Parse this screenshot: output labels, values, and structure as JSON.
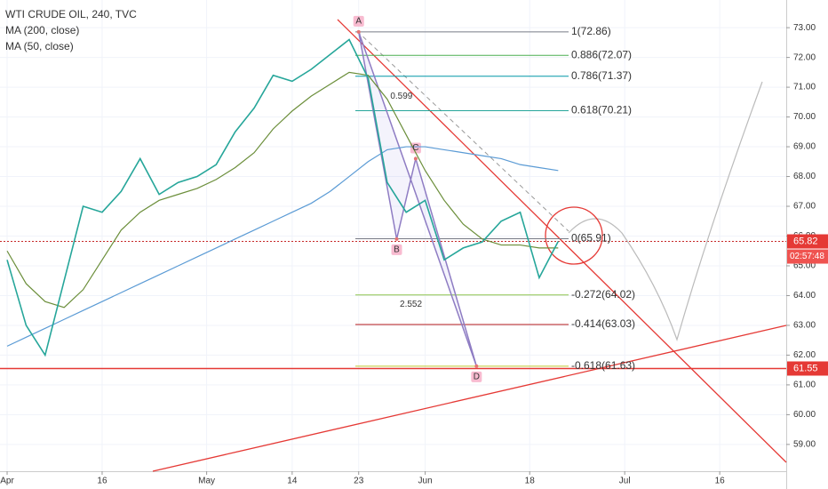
{
  "chart_data": {
    "type": "line",
    "title": "WTI CRUDE OIL, 240, TVC",
    "x": [
      0,
      2,
      4,
      6,
      8,
      10,
      12,
      14,
      16,
      18,
      20,
      22,
      24,
      26,
      28,
      30,
      32,
      34,
      36,
      38,
      40,
      42,
      44,
      46,
      48,
      50,
      52,
      54,
      56,
      58
    ],
    "series": [
      {
        "name": "MA (200, close)",
        "color": "#5b9bd5",
        "values": [
          62.3,
          62.6,
          62.9,
          63.2,
          63.5,
          63.8,
          64.1,
          64.4,
          64.7,
          65.0,
          65.3,
          65.6,
          65.9,
          66.2,
          66.5,
          66.8,
          67.1,
          67.5,
          68.0,
          68.5,
          68.9,
          69.0,
          69.0,
          68.9,
          68.8,
          68.7,
          68.6,
          68.4,
          68.3,
          68.2
        ]
      },
      {
        "name": "MA (50, close)",
        "color": "#6b8e3a",
        "values": [
          65.5,
          64.4,
          63.8,
          63.6,
          64.2,
          65.2,
          66.2,
          66.8,
          67.2,
          67.4,
          67.6,
          67.9,
          68.3,
          68.8,
          69.6,
          70.2,
          70.7,
          71.1,
          71.5,
          71.4,
          70.6,
          69.4,
          68.2,
          67.2,
          66.4,
          65.9,
          65.7,
          65.7,
          65.6,
          65.6
        ]
      },
      {
        "color": "#26a69a",
        "values": [
          65.2,
          63.0,
          62.0,
          64.5,
          67.0,
          66.8,
          67.5,
          68.6,
          67.4,
          67.8,
          68.0,
          68.4,
          69.5,
          70.3,
          71.4,
          71.2,
          71.6,
          72.1,
          72.6,
          71.3,
          67.8,
          66.8,
          67.2,
          65.2,
          65.6,
          65.8,
          66.5,
          66.8,
          64.6,
          65.82
        ]
      }
    ],
    "xlim": [
      -0.75,
      82
    ],
    "xticks": [
      {
        "value": 0,
        "label": "Apr"
      },
      {
        "value": 10,
        "label": "16"
      },
      {
        "value": 21,
        "label": "May"
      },
      {
        "value": 30,
        "label": "14"
      },
      {
        "value": 37,
        "label": "23"
      },
      {
        "value": 44,
        "label": "Jun"
      },
      {
        "value": 55,
        "label": "18"
      },
      {
        "value": 65,
        "label": "Jul"
      },
      {
        "value": 75,
        "label": "16"
      }
    ],
    "ylim": [
      58.1,
      73.93
    ],
    "yticks": [
      {
        "value": 59,
        "label": "59.00"
      },
      {
        "value": 60,
        "label": "60.00"
      },
      {
        "value": 61,
        "label": "61.00"
      },
      {
        "value": 62,
        "label": "62.00"
      },
      {
        "value": 63,
        "label": "63.00"
      },
      {
        "value": 64,
        "label": "64.00"
      },
      {
        "value": 65,
        "label": "65.00"
      },
      {
        "value": 66,
        "label": "66.00"
      },
      {
        "value": 67,
        "label": "67.00"
      },
      {
        "value": 68,
        "label": "68.00"
      },
      {
        "value": 69,
        "label": "69.00"
      },
      {
        "value": 70,
        "label": "70.00"
      },
      {
        "value": 71,
        "label": "71.00"
      },
      {
        "value": 72,
        "label": "72.00"
      },
      {
        "value": 73,
        "label": "73.00"
      }
    ],
    "grid": true,
    "fib_levels": [
      {
        "label": "1(72.86)",
        "value": 72.86,
        "color": "#787b86"
      },
      {
        "label": "0.886(72.07)",
        "value": 72.07,
        "color": "#4caf50"
      },
      {
        "label": "0.786(71.37)",
        "value": 71.37,
        "color": "#0097a7"
      },
      {
        "label": "0.618(70.21)",
        "value": 70.21,
        "color": "#26a69a"
      },
      {
        "label": "0(65.91)",
        "value": 65.91,
        "color": "#787b86"
      },
      {
        "label": "-0.272(64.02)",
        "value": 64.02,
        "color": "#8bc34a"
      },
      {
        "label": "-0.414(63.03)",
        "value": 63.03,
        "color": "#b71c1c"
      },
      {
        "label": "-0.618(61.63)",
        "value": 61.63,
        "color": "#c0ca33"
      }
    ],
    "pattern": {
      "points": [
        {
          "label": "A",
          "x": 37,
          "y": 72.86
        },
        {
          "label": "B",
          "x": 41,
          "y": 65.9
        },
        {
          "label": "C",
          "x": 43,
          "y": 68.6
        },
        {
          "label": "D",
          "x": 49.4,
          "y": 61.63
        }
      ],
      "ratios": [
        {
          "label": "0.599",
          "x": 41.5,
          "y": 70.7
        },
        {
          "label": "2.552",
          "x": 42.5,
          "y": 63.7
        }
      ]
    },
    "last_price": 65.82,
    "countdown": "02:57:48",
    "support_price": 61.55
  }
}
